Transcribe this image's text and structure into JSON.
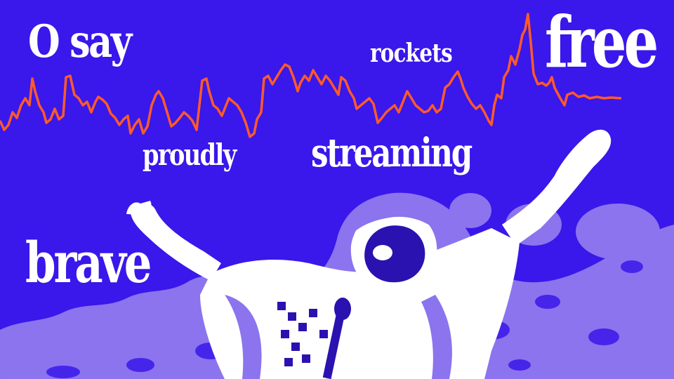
{
  "words": {
    "o_say": "O say",
    "rockets": "rockets",
    "free": "free",
    "proudly": "proudly",
    "streaming": "streaming",
    "brave": "brave"
  },
  "colors": {
    "background": "#3a17ea",
    "chart_line": "#ff5a2a",
    "crowd": "#8b74ee",
    "figure": "#ffffff",
    "figure_shadow": "#2a12b0"
  },
  "illustration": {
    "subject": "singer-with-raised-arms-icon",
    "crowd": "crowd-silhouette-icon",
    "microphone": "microphone-icon"
  }
}
